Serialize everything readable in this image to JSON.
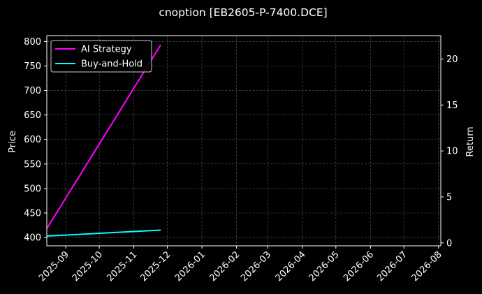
{
  "chart_data": {
    "type": "line",
    "title": "cnoption [EB2605-P-7400.DCE]",
    "xlabel": "",
    "ylabel": "Price",
    "y2label": "Return",
    "x_range": [
      "2025-08-15",
      "2026-08-03"
    ],
    "x_ticks": [
      "2025-09",
      "2025-10",
      "2025-11",
      "2025-12",
      "2026-01",
      "2026-02",
      "2026-03",
      "2026-04",
      "2026-05",
      "2026-06",
      "2026-07",
      "2026-08"
    ],
    "ylim": [
      383,
      812
    ],
    "y_ticks": [
      400,
      450,
      500,
      550,
      600,
      650,
      700,
      750,
      800
    ],
    "y2lim": [
      -0.32,
      22.55
    ],
    "y2_ticks": [
      0,
      5,
      10,
      15,
      20
    ],
    "grid": true,
    "legend_position": "top-left",
    "series": [
      {
        "name": "AI Strategy",
        "color": "#ff00ff",
        "axis": "left",
        "x": [
          "2025-08-15",
          "2025-11-25"
        ],
        "values": [
          418,
          793
        ]
      },
      {
        "name": "Buy-and-Hold",
        "color": "#00ffff",
        "axis": "left",
        "x": [
          "2025-08-15",
          "2025-11-25"
        ],
        "values": [
          403,
          415
        ]
      }
    ]
  }
}
